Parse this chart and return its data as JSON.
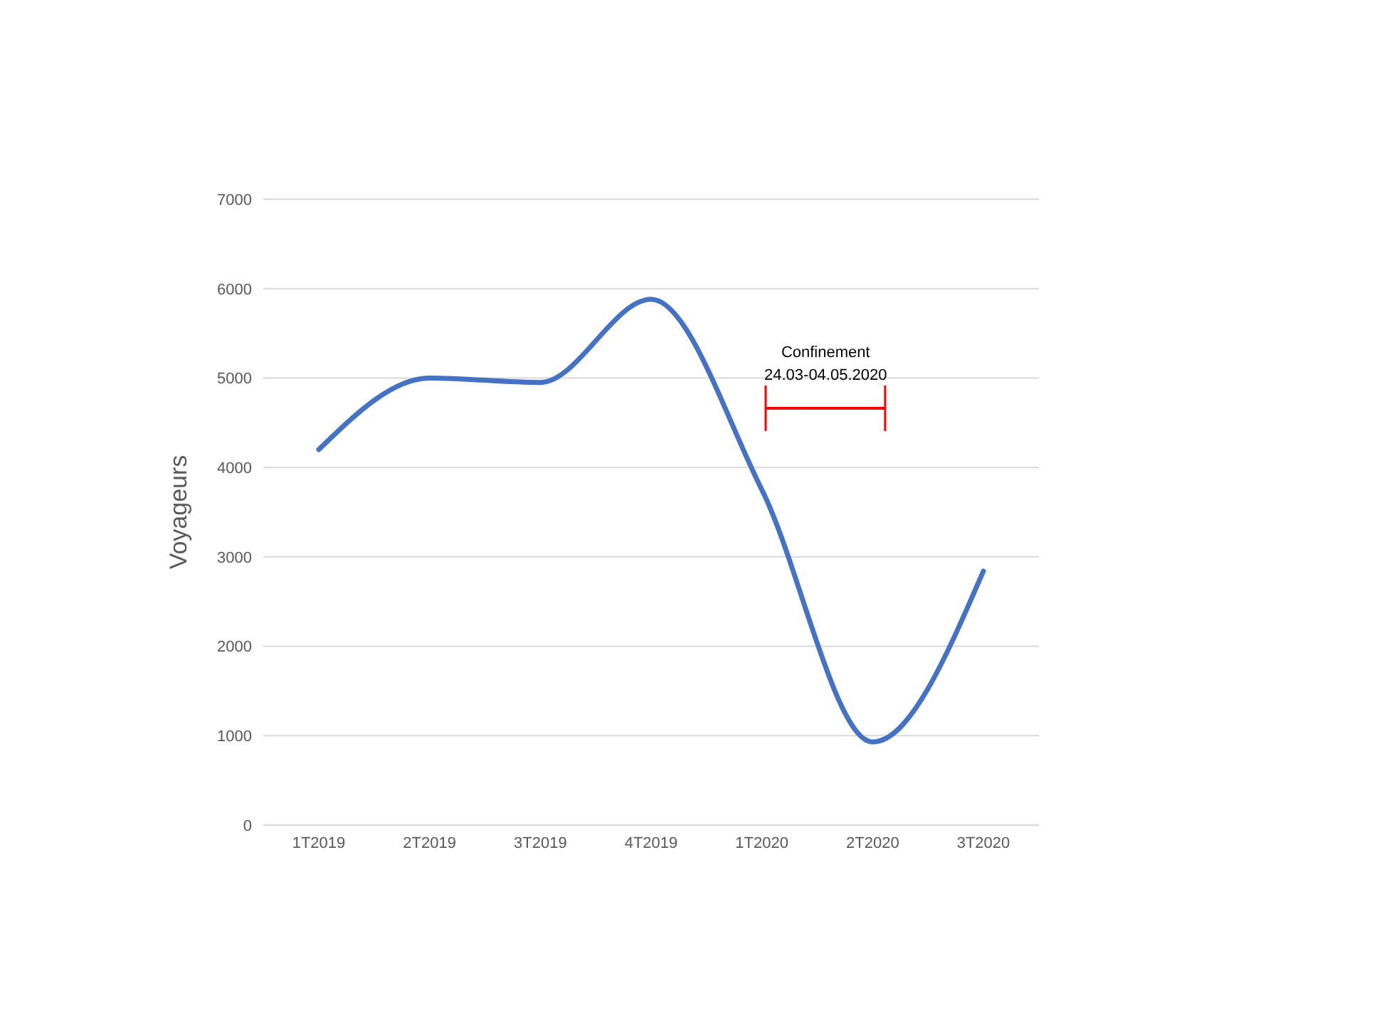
{
  "chart_data": {
    "type": "line",
    "ylabel": "Voyageurs",
    "categories": [
      "1T2019",
      "2T2019",
      "3T2019",
      "4T2019",
      "1T2020",
      "2T2020",
      "3T2020"
    ],
    "series": [
      {
        "color": "#4472c4",
        "values": [
          4200,
          5000,
          4950,
          5880,
          3750,
          930,
          2840
        ]
      }
    ],
    "ylim": [
      0,
      7000
    ],
    "yticks": [
      0,
      1000,
      2000,
      3000,
      4000,
      5000,
      6000,
      7000
    ],
    "grid": "y",
    "marker": "none",
    "line_style": "solid",
    "annotations": [
      "Confinement",
      "24.03-04.05.2020"
    ]
  }
}
